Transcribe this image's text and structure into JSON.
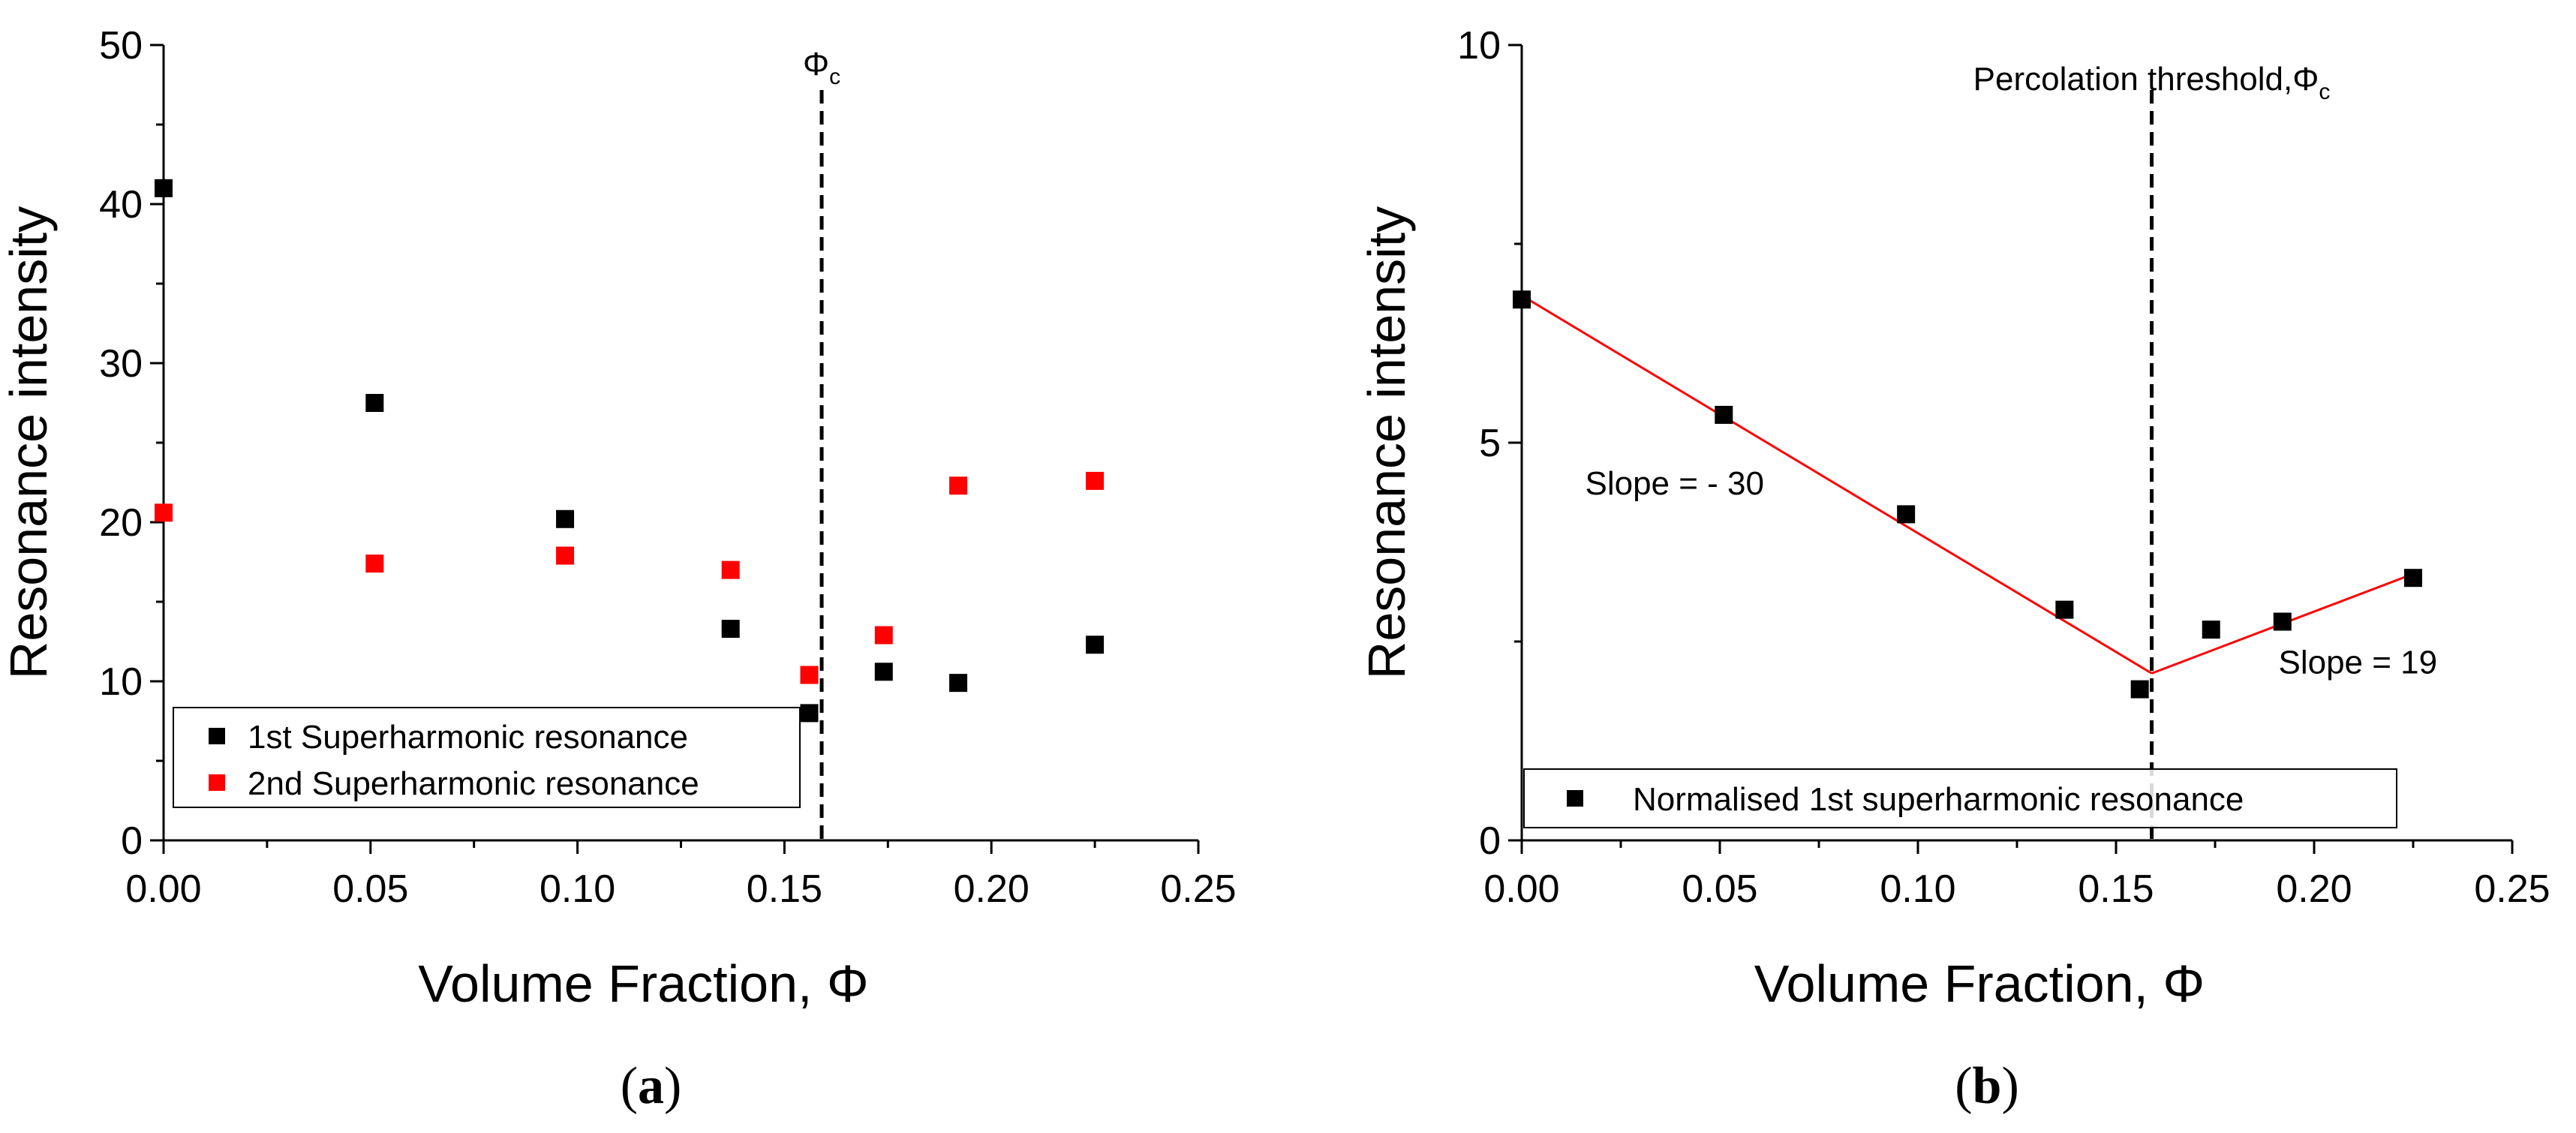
{
  "chart_data": [
    {
      "type": "scatter",
      "panel": "a",
      "caption_letter": "a",
      "title": "",
      "xlabel": "Volume Fraction, Φ",
      "ylabel": "Resonance intensity",
      "xlim": [
        0.0,
        0.25
      ],
      "ylim": [
        0,
        50
      ],
      "xticks": [
        "0.00",
        "0.05",
        "0.10",
        "0.15",
        "0.20",
        "0.25"
      ],
      "yticks": [
        "0",
        "10",
        "20",
        "30",
        "40",
        "50"
      ],
      "series": [
        {
          "name": "1st Superharmonic resonance",
          "color": "#000000",
          "x": [
            0.0,
            0.051,
            0.097,
            0.137,
            0.156,
            0.174,
            0.192,
            0.225
          ],
          "y": [
            41.0,
            27.5,
            20.2,
            13.3,
            8.0,
            10.6,
            9.9,
            12.3
          ]
        },
        {
          "name": "2nd Superharmonic resonance",
          "color": "#ff0000",
          "x": [
            0.0,
            0.051,
            0.097,
            0.137,
            0.156,
            0.174,
            0.192,
            0.225
          ],
          "y": [
            20.6,
            17.4,
            17.9,
            17.0,
            10.4,
            12.9,
            22.3,
            22.6
          ]
        }
      ],
      "threshold": {
        "x": 0.159,
        "label": "Φ",
        "subscript": "c"
      },
      "legend_position": "bottom-left"
    },
    {
      "type": "scatter",
      "panel": "b",
      "caption_letter": "b",
      "title": "",
      "xlabel": "Volume Fraction, Φ",
      "ylabel": "Resonance intensity",
      "xlim": [
        0.0,
        0.25
      ],
      "ylim": [
        0,
        10
      ],
      "xticks": [
        "0.00",
        "0.05",
        "0.10",
        "0.15",
        "0.20",
        "0.25"
      ],
      "yticks": [
        "0",
        "5",
        "10"
      ],
      "series": [
        {
          "name": "Normalised 1st superharmonic resonance",
          "color": "#000000",
          "x": [
            0.0,
            0.051,
            0.097,
            0.137,
            0.156,
            0.174,
            0.192,
            0.225
          ],
          "y": [
            6.8,
            5.35,
            4.1,
            2.9,
            1.9,
            2.65,
            2.75,
            3.3
          ]
        }
      ],
      "fit_lines": [
        {
          "color": "#ff0000",
          "x": [
            0.0,
            0.159
          ],
          "y": [
            6.85,
            2.1
          ]
        },
        {
          "color": "#ff0000",
          "x": [
            0.159,
            0.225
          ],
          "y": [
            2.1,
            3.35
          ]
        }
      ],
      "annotations": [
        {
          "text": "Slope = - 30",
          "x": 0.016,
          "y": 4.35
        },
        {
          "text": "Slope = 19",
          "x": 0.191,
          "y": 2.1
        }
      ],
      "threshold": {
        "x": 0.159,
        "label": "Percolation threshold,Φ",
        "subscript": "c"
      },
      "legend_position": "bottom-left"
    }
  ]
}
